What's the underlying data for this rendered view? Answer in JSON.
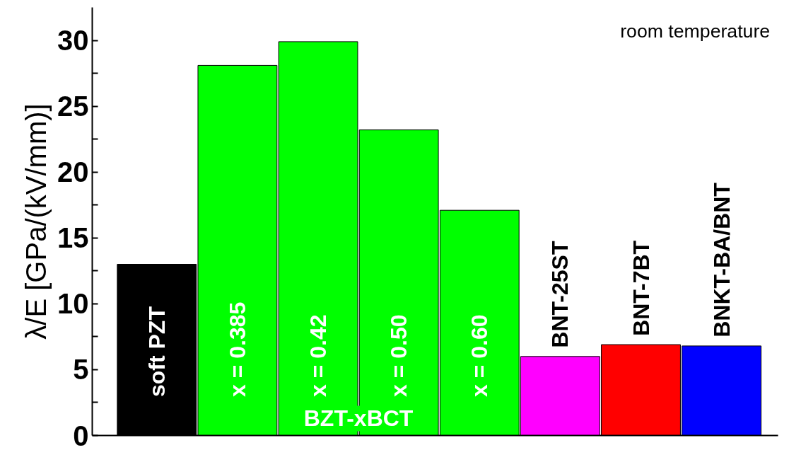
{
  "chart_data": {
    "type": "bar",
    "ylabel": "λ/E [GPa/(kV/mm)]",
    "categories": [
      "soft PZT",
      "x = 0.385",
      "x = 0.42",
      "x = 0.50",
      "x = 0.60",
      "BNT-25ST",
      "BNT-7BT",
      "BNKT-BA/BNT"
    ],
    "values": [
      13,
      28.1,
      29.9,
      23.2,
      17.1,
      6.0,
      6.9,
      6.8
    ],
    "colors": [
      "#000000",
      "#00ff00",
      "#00ff00",
      "#00ff00",
      "#00ff00",
      "#ff00ff",
      "#ff0000",
      "#0000ff"
    ],
    "ylim": [
      0,
      32.5
    ],
    "yticks": [
      0,
      {
        "value": 2.5,
        "label": null
      },
      5,
      {
        "value": 7.5,
        "label": null
      },
      10,
      {
        "value": 12.5,
        "label": null
      },
      15,
      {
        "value": 17.5,
        "label": null
      },
      20,
      {
        "value": 22.5,
        "label": null
      },
      25,
      {
        "value": 27.5,
        "label": null
      },
      30
    ],
    "tick_labels": "y",
    "grid": false,
    "annotations": [
      "room temperature",
      "BZT-xBCT"
    ]
  }
}
